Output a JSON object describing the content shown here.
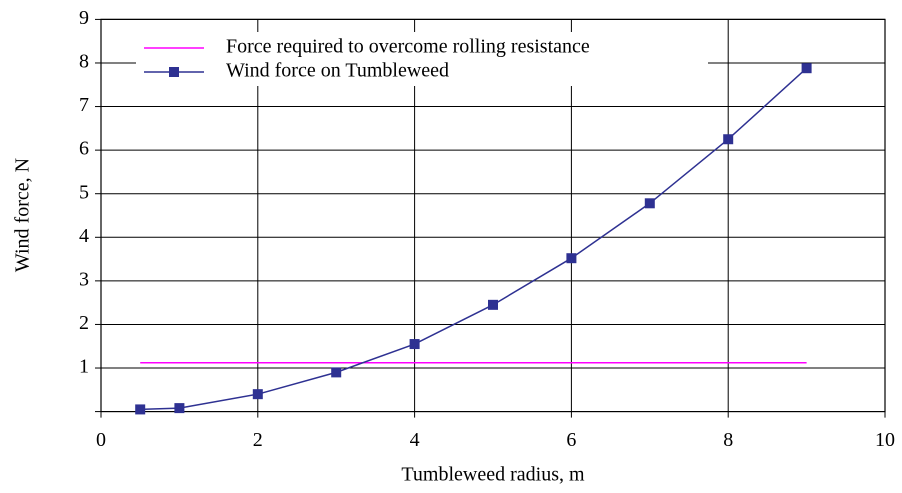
{
  "chart_data": {
    "type": "line",
    "xlabel": "Tumbleweed radius, m",
    "ylabel": "Wind force, N",
    "xlim": [
      0,
      10
    ],
    "ylim": [
      0,
      9
    ],
    "xticks": [
      0,
      2,
      4,
      6,
      8,
      10
    ],
    "yticks": [
      1,
      2,
      3,
      4,
      5,
      6,
      7,
      8,
      9
    ],
    "grid": true,
    "legend": "upper left",
    "series": [
      {
        "name": "Force required to overcome rolling resistance",
        "color": "#ff00ff",
        "marker": false,
        "x": [
          0.5,
          9
        ],
        "values": [
          1.12,
          1.12
        ]
      },
      {
        "name": "Wind force on Tumbleweed",
        "color": "#2e3192",
        "marker": true,
        "x": [
          0.5,
          1,
          2,
          3,
          4,
          5,
          6,
          7,
          8,
          9
        ],
        "values": [
          0.05,
          0.08,
          0.4,
          0.9,
          1.55,
          2.45,
          3.52,
          4.78,
          6.25,
          7.88
        ]
      }
    ]
  }
}
